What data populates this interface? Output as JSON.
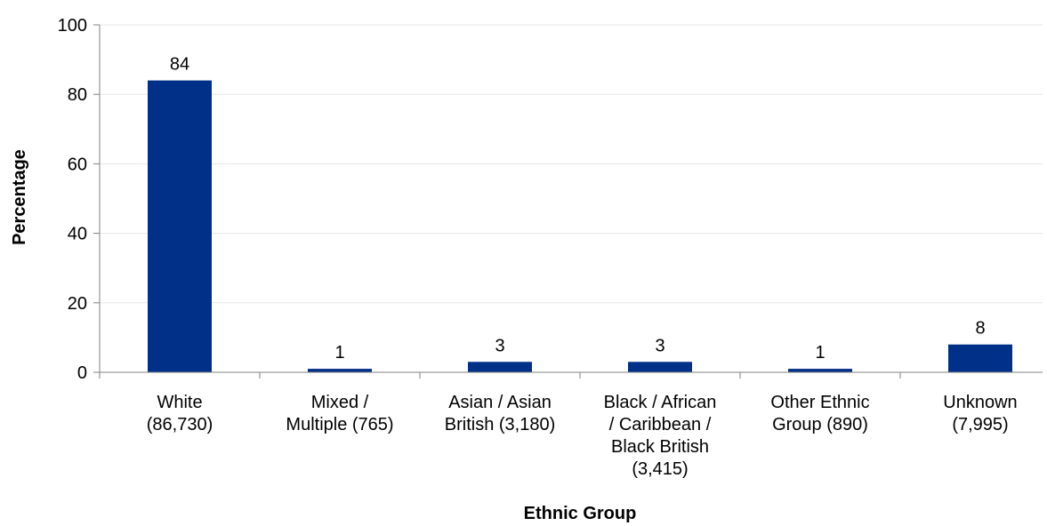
{
  "chart_data": {
    "type": "bar",
    "categories": [
      [
        "White",
        "(86,730)"
      ],
      [
        "Mixed /",
        "Multiple (765)"
      ],
      [
        "Asian / Asian",
        "British (3,180)"
      ],
      [
        "Black / African",
        "/ Caribbean /",
        "Black British",
        "(3,415)"
      ],
      [
        "Other Ethnic",
        "Group (890)"
      ],
      [
        "Unknown",
        "(7,995)"
      ]
    ],
    "values": [
      84,
      1,
      3,
      3,
      1,
      8
    ],
    "data_labels": [
      "84",
      "1",
      "3",
      "3",
      "1",
      "8"
    ],
    "title": "",
    "xlabel": "Ethnic Group",
    "ylabel": "Percentage",
    "ylim": [
      0,
      100
    ],
    "yticks": [
      0,
      20,
      40,
      60,
      80,
      100
    ],
    "grid": true,
    "legend": "none",
    "bar_color": "#003087",
    "grid_color": "#e6e6e6",
    "axis_color": "#808080"
  }
}
